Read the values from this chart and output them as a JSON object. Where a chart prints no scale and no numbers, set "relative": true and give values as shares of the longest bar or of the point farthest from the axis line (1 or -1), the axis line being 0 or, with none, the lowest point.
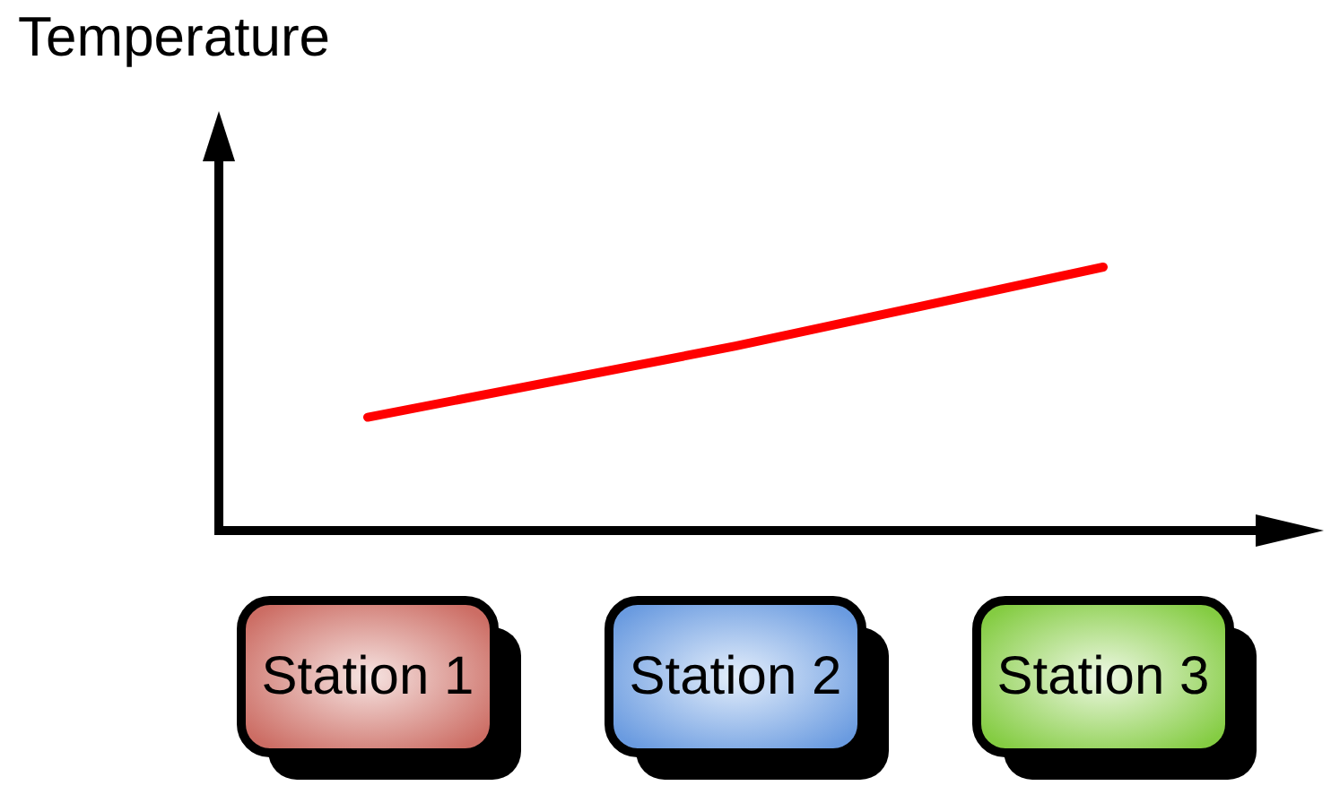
{
  "chart_data": {
    "type": "line",
    "ylabel": "Temperature",
    "categories": [
      "Station 1",
      "Station 2",
      "Station 3"
    ],
    "relative": true,
    "series": [
      {
        "color": "#ff0000",
        "values": [
          0.43,
          0.7,
          1
        ]
      }
    ]
  }
}
